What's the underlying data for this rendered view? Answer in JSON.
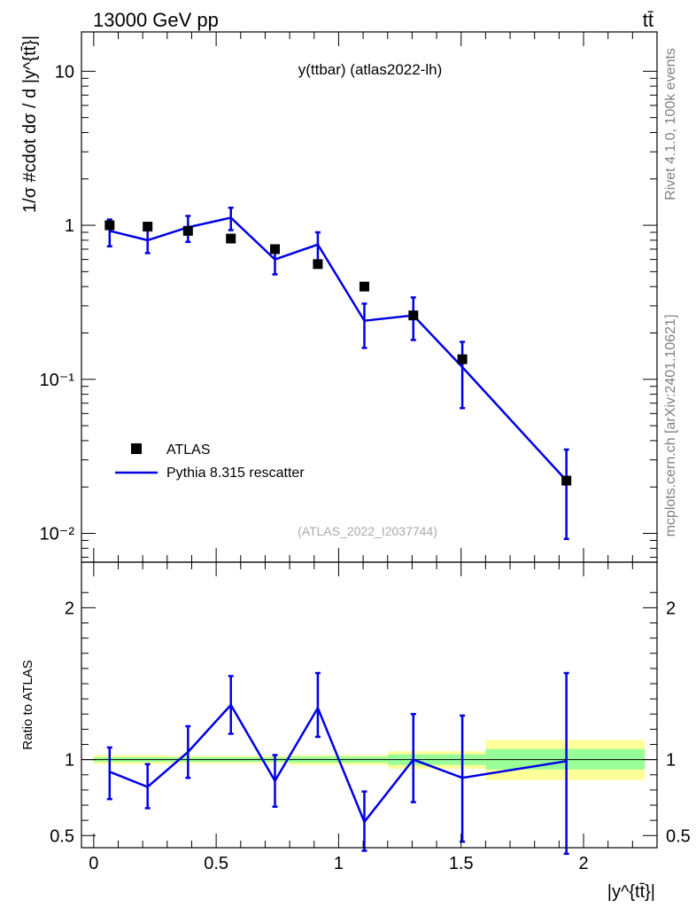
{
  "header": {
    "energy_label": "13000 GeV pp",
    "process_label": "tt̄"
  },
  "side_labels": {
    "rivet": "Rivet 4.1.0,  100k events",
    "mcplots": "mcplots.cern.ch [arXiv:2401.10621]"
  },
  "colors": {
    "mc": "#0000e6",
    "data": "#000000",
    "band_inner": "#99ff99",
    "band_outer": "#ffff99"
  },
  "chart_data": [
    {
      "type": "line",
      "title": "y(ttbar) (atlas2022-lh)",
      "analysis_label": "(ATLAS_2022_I2037744)",
      "ylabel": "1/σ #cdot dσ / d |y^{tt̄}|",
      "xlabel": "|y^{tt̄}|",
      "yscale": "log",
      "xlim": [
        -0.05,
        2.3
      ],
      "ylim": [
        0.0065,
        18
      ],
      "y_ticks": [
        {
          "value": 0.01,
          "label": "10⁻²"
        },
        {
          "value": 0.1,
          "label": "10⁻¹"
        },
        {
          "value": 1,
          "label": "1"
        },
        {
          "value": 10,
          "label": "10"
        }
      ],
      "legend": [
        {
          "name": "ATLAS",
          "kind": "data"
        },
        {
          "name": "Pythia 8.315 rescatter",
          "kind": "mc"
        }
      ],
      "data_points": {
        "name": "ATLAS",
        "x": [
          0.065,
          0.22,
          0.385,
          0.56,
          0.74,
          0.915,
          1.105,
          1.305,
          1.505,
          1.93
        ],
        "y": [
          1.0,
          0.98,
          0.92,
          0.82,
          0.7,
          0.56,
          0.4,
          0.26,
          0.135,
          0.022
        ]
      },
      "mc_series": {
        "name": "Pythia 8.315 rescatter",
        "x": [
          0.065,
          0.22,
          0.385,
          0.56,
          0.74,
          0.915,
          1.105,
          1.305,
          1.505,
          1.93
        ],
        "y": [
          0.92,
          0.8,
          0.97,
          1.12,
          0.6,
          0.75,
          0.24,
          0.26,
          0.12,
          0.022
        ],
        "err_lo": [
          0.73,
          0.66,
          0.78,
          0.93,
          0.48,
          0.59,
          0.16,
          0.18,
          0.065,
          0.0092
        ],
        "err_hi": [
          1.09,
          0.95,
          1.15,
          1.3,
          0.72,
          0.9,
          0.31,
          0.34,
          0.175,
          0.035
        ]
      }
    },
    {
      "type": "line",
      "ylabel": "Ratio to ATLAS",
      "xlabel": "|y^{tt̄}|",
      "xlim": [
        -0.05,
        2.3
      ],
      "ylim": [
        0.42,
        2.3
      ],
      "y_ticks": [
        {
          "value": 0.5,
          "label": "0.5"
        },
        {
          "value": 1,
          "label": "1"
        },
        {
          "value": 2,
          "label": "2"
        }
      ],
      "x_ticks": [
        {
          "value": 0,
          "label": "0"
        },
        {
          "value": 0.5,
          "label": "0.5"
        },
        {
          "value": 1,
          "label": "1"
        },
        {
          "value": 1.5,
          "label": "1.5"
        },
        {
          "value": 2,
          "label": "2"
        }
      ],
      "bands": [
        {
          "x0": 0.0,
          "x1": 0.3,
          "inner": [
            0.985,
            1.015
          ],
          "outer": [
            0.97,
            1.03
          ]
        },
        {
          "x0": 0.3,
          "x1": 0.8,
          "inner": [
            0.985,
            1.015
          ],
          "outer": [
            0.975,
            1.025
          ]
        },
        {
          "x0": 0.8,
          "x1": 1.2,
          "inner": [
            0.98,
            1.02
          ],
          "outer": [
            0.965,
            1.03
          ]
        },
        {
          "x0": 1.2,
          "x1": 1.6,
          "inner": [
            0.965,
            1.035
          ],
          "outer": [
            0.94,
            1.055
          ]
        },
        {
          "x0": 1.6,
          "x1": 2.25,
          "inner": [
            0.935,
            1.07
          ],
          "outer": [
            0.865,
            1.13
          ]
        }
      ],
      "mc_series": {
        "name": "Pythia 8.315 rescatter",
        "x": [
          0.065,
          0.22,
          0.385,
          0.56,
          0.74,
          0.915,
          1.105,
          1.305,
          1.505,
          1.93
        ],
        "y": [
          0.92,
          0.82,
          1.05,
          1.36,
          0.86,
          1.34,
          0.59,
          1.0,
          0.88,
          0.99
        ],
        "err_lo": [
          0.74,
          0.68,
          0.88,
          1.17,
          0.69,
          1.15,
          0.4,
          0.72,
          0.46,
          0.38
        ],
        "err_hi": [
          1.08,
          0.97,
          1.22,
          1.55,
          1.03,
          1.57,
          0.79,
          1.3,
          1.29,
          1.57
        ]
      }
    }
  ]
}
